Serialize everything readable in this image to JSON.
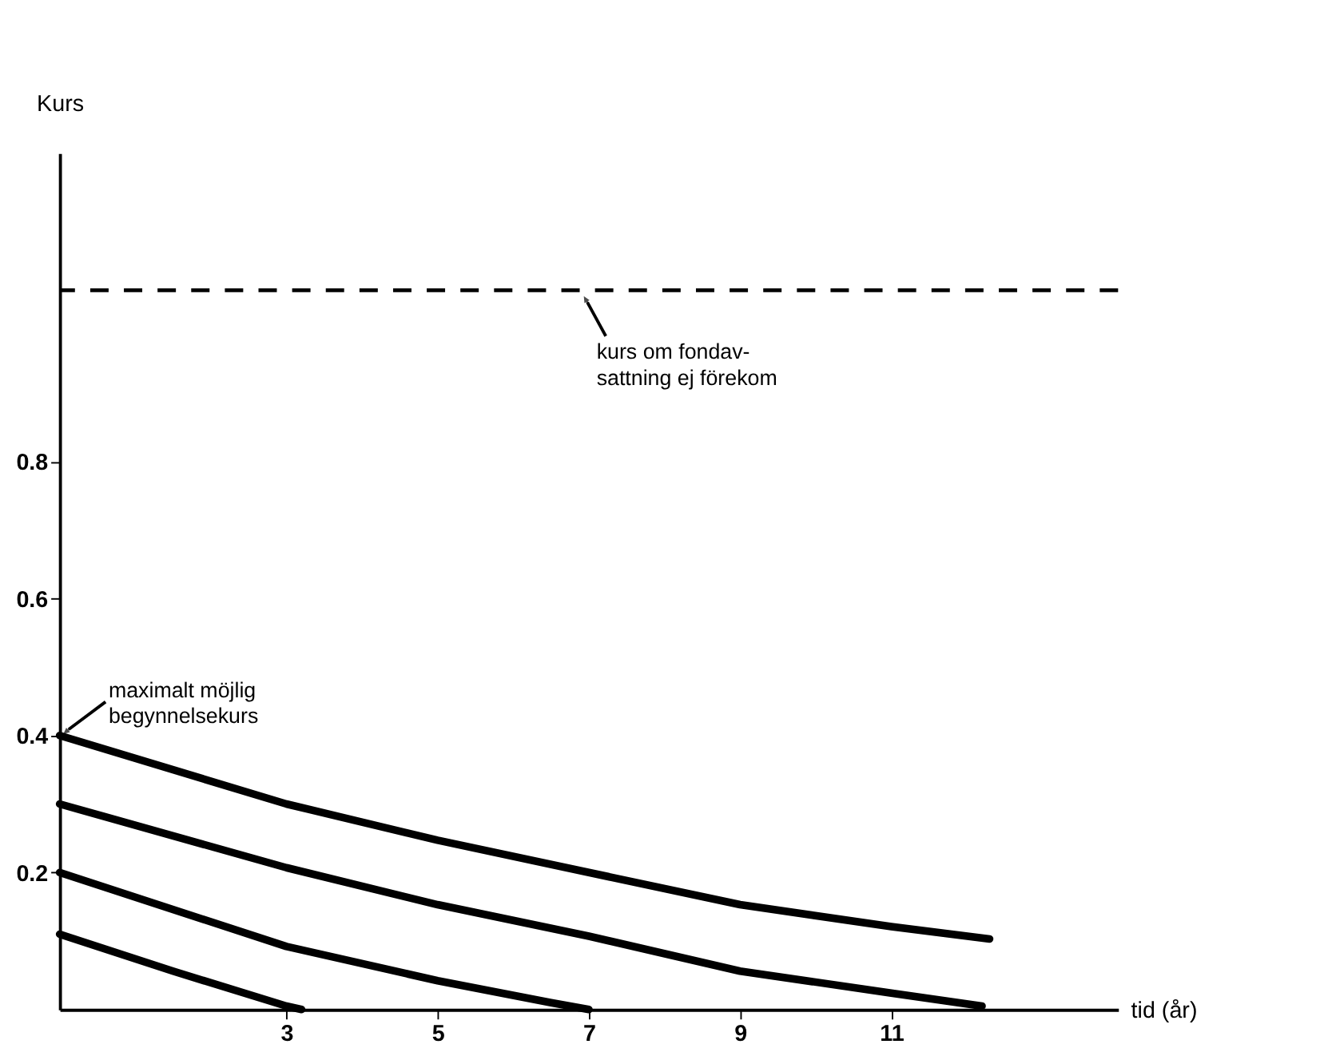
{
  "chart_data": {
    "type": "line",
    "ylabel": "Kurs",
    "xlabel": "tid (år)",
    "xlim": [
      0,
      14
    ],
    "ylim": [
      0,
      1.25
    ],
    "xticks": [
      3,
      5,
      7,
      9,
      11
    ],
    "yticks": [
      0.2,
      0.4,
      0.6,
      0.8
    ],
    "grid": false,
    "legend": false,
    "marker": "none",
    "line_style": "solid",
    "series": [
      {
        "color": "#000000",
        "x": [
          0,
          3,
          5,
          7,
          9,
          11,
          12.3
        ],
        "values": [
          0.4,
          0.3,
          0.247,
          0.2,
          0.153,
          0.121,
          0.103
        ]
      },
      {
        "color": "#000000",
        "x": [
          0,
          3,
          5,
          7,
          9,
          11,
          12.2
        ],
        "values": [
          0.3,
          0.207,
          0.153,
          0.107,
          0.056,
          0.024,
          0.005
        ]
      },
      {
        "color": "#000000",
        "x": [
          0,
          3,
          5,
          6.5,
          7
        ],
        "values": [
          0.2,
          0.092,
          0.042,
          0.01,
          0
        ]
      },
      {
        "color": "#000000",
        "x": [
          0,
          1.5,
          3,
          3.2
        ],
        "values": [
          0.11,
          0.056,
          0.005,
          0
        ]
      }
    ],
    "ref_lines": [
      {
        "axis": "y",
        "value": 1.05,
        "color": "#000000",
        "line_style": "dashed"
      }
    ],
    "annotations": [
      {
        "text": "maximalt möjlig\nbegynnelsekurs",
        "x": 0,
        "y": 0.4
      },
      {
        "text": "kurs om fondav-\nsattning ej förekom",
        "x": 6.9,
        "y": 1.05
      }
    ]
  }
}
